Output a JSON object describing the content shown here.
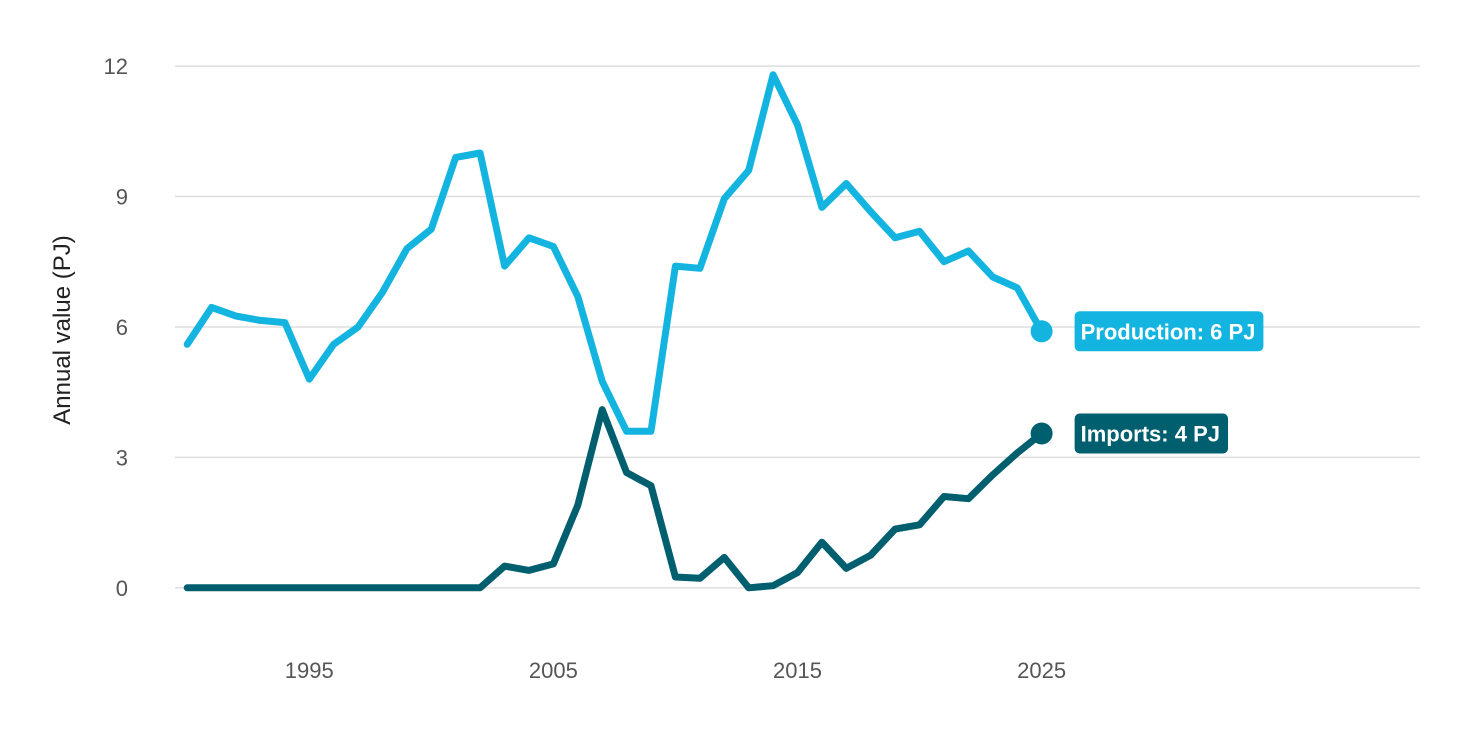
{
  "chart_data": {
    "type": "line",
    "title": "",
    "xlabel": "",
    "ylabel": "Annual value (PJ)",
    "xlim": [
      1989.5,
      2040.5
    ],
    "ylim": [
      -1.2,
      12.6
    ],
    "x_ticks": [
      1995,
      2005,
      2015,
      2025
    ],
    "x_tick_labels": [
      "1995",
      "2005",
      "2015",
      "2025"
    ],
    "y_ticks": [
      0,
      3,
      6,
      9,
      12
    ],
    "y_tick_labels": [
      "0",
      "3",
      "6",
      "9",
      "12"
    ],
    "grid": true,
    "legend": "none",
    "x": [
      1990,
      1991,
      1992,
      1993,
      1994,
      1995,
      1996,
      1997,
      1998,
      1999,
      2000,
      2001,
      2002,
      2003,
      2004,
      2005,
      2006,
      2007,
      2008,
      2009,
      2010,
      2011,
      2012,
      2013,
      2014,
      2015,
      2016,
      2017,
      2018,
      2019,
      2020,
      2021,
      2022,
      2023,
      2024,
      2025
    ],
    "series": [
      {
        "name": "Production",
        "color": "#13b5e0",
        "end_label": "Production: 6 PJ",
        "values": [
          5.6,
          6.45,
          6.25,
          6.15,
          6.1,
          4.8,
          5.6,
          6.0,
          6.8,
          7.8,
          8.25,
          9.9,
          10.0,
          7.4,
          8.05,
          7.85,
          6.7,
          4.75,
          3.6,
          3.6,
          7.4,
          7.35,
          8.95,
          9.6,
          11.8,
          10.65,
          8.75,
          9.3,
          8.65,
          8.05,
          8.2,
          7.5,
          7.75,
          7.15,
          6.9,
          5.9
        ]
      },
      {
        "name": "Imports",
        "color": "#005f6e",
        "end_label": "Imports: 4 PJ",
        "values": [
          0,
          0,
          0,
          0,
          0,
          0,
          0,
          0,
          0,
          0,
          0,
          0,
          0,
          0.5,
          0.4,
          0.55,
          1.9,
          4.1,
          2.65,
          2.35,
          0.25,
          0.22,
          0.7,
          0.0,
          0.05,
          0.35,
          1.05,
          0.45,
          0.75,
          1.35,
          1.45,
          2.1,
          2.05,
          2.6,
          3.1,
          3.55
        ]
      }
    ]
  }
}
